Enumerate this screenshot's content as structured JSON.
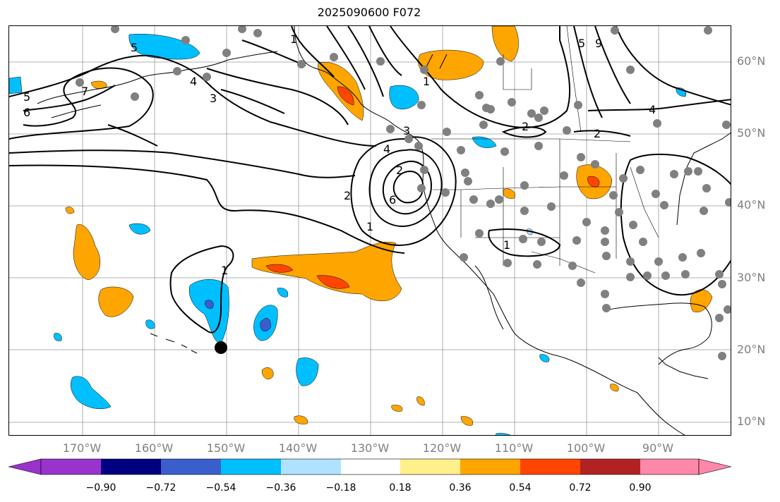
{
  "title": "2025090600 F072",
  "lat_labels": [
    "60°N",
    "50°N",
    "40°N",
    "30°N",
    "20°N",
    "10°N"
  ],
  "lon_labels": [
    "170°W",
    "160°W",
    "150°W",
    "140°W",
    "130°W",
    "120°W",
    "110°W",
    "100°W",
    "90°W"
  ],
  "colorbar": {
    "colors": [
      "#9933cc",
      "#000080",
      "#3a5fcd",
      "#00bfff",
      "#b0e2ff",
      "#ffffff",
      "#fff08c",
      "#ffa500",
      "#ff4500",
      "#b22222",
      "#ff88aa"
    ],
    "ticks": [
      "−0.90",
      "−0.72",
      "−0.54",
      "−0.36",
      "−0.18",
      "0.18",
      "0.36",
      "0.54",
      "0.72",
      "0.90"
    ]
  },
  "contour_labels": [
    "5",
    "7",
    "6",
    "5",
    "3",
    "2",
    "1",
    "4",
    "3",
    "2",
    "1",
    "4",
    "6",
    "2",
    "1",
    "2",
    "4",
    "1",
    "1",
    "5",
    "9"
  ],
  "colors": {
    "orange": "#ffa500",
    "red": "#ff4500",
    "darkred": "#b22222",
    "cyan": "#00bfff",
    "blue": "#3a5fcd",
    "station": "#808080"
  }
}
